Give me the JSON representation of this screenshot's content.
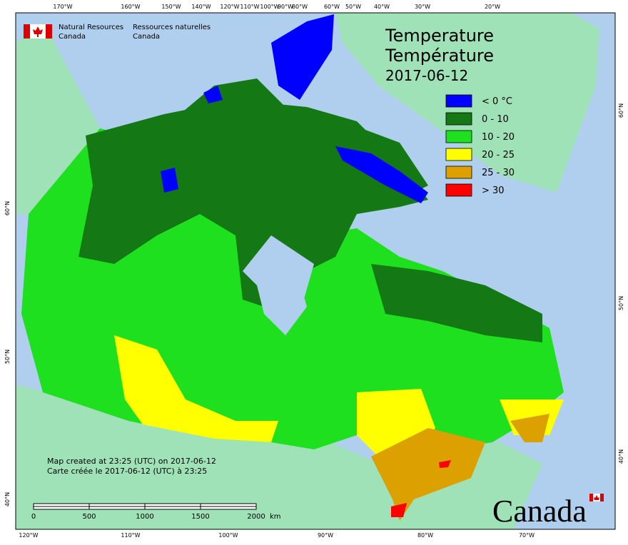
{
  "agency": {
    "en_line1": "Natural Resources",
    "en_line2": "Canada",
    "fr_line1": "Ressources naturelles",
    "fr_line2": "Canada"
  },
  "title": {
    "en": "Temperature",
    "fr": "Température",
    "date": "2017-06-12"
  },
  "legend": [
    {
      "label": "< 0 °C",
      "color": "#0000ff"
    },
    {
      "label": "0 - 10",
      "color": "#147814"
    },
    {
      "label": "10 - 20",
      "color": "#1ee01e"
    },
    {
      "label": "20 - 25",
      "color": "#ffff00"
    },
    {
      "label": "25 - 30",
      "color": "#dca000"
    },
    {
      "label": "> 30",
      "color": "#ff0000"
    }
  ],
  "notes": [
    "Map created at 23:25 (UTC) on 2017-06-12",
    "Carte créée le 2017-06-12 (UTC) à 23:25"
  ],
  "scale": {
    "ticks": [
      "0",
      "500",
      "1000",
      "1500",
      "2000"
    ],
    "unit": "km"
  },
  "graticule": {
    "top": [
      "170°W",
      "160°W",
      "150°W",
      "140°W",
      "120°W",
      "110°W",
      "100°W",
      "90°W",
      "80°W",
      "60°W",
      "50°W",
      "40°W",
      "30°W",
      "20°W"
    ],
    "bottom": [
      "120°W",
      "110°W",
      "100°W",
      "90°W",
      "80°W",
      "70°W"
    ],
    "left": [
      "60°N",
      "50°N",
      "40°N"
    ],
    "right": [
      "60°N",
      "50°N",
      "40°N"
    ]
  },
  "wordmark": "Canada"
}
